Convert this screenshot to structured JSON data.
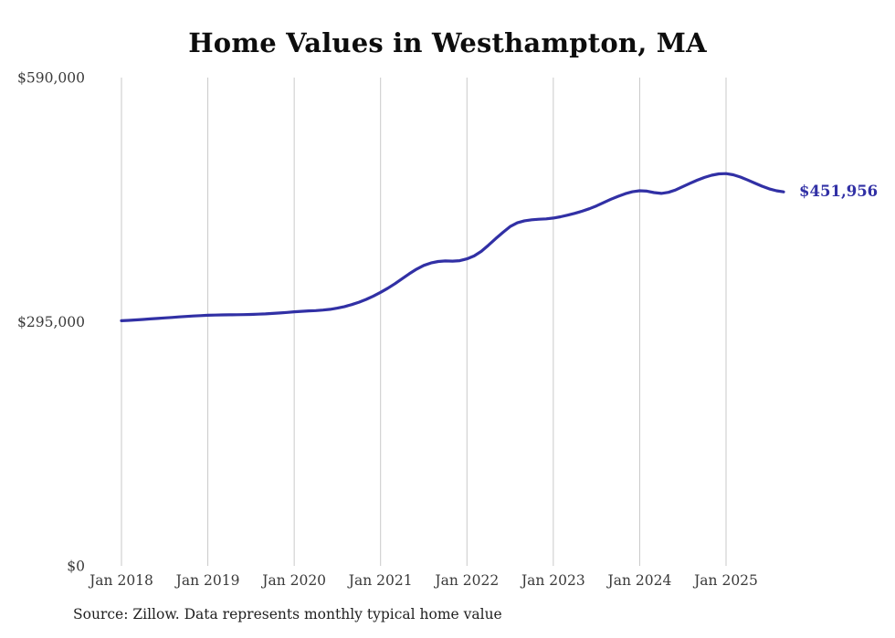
{
  "page": {
    "background": "#ffffff"
  },
  "chart_data": {
    "type": "line",
    "title": "Home Values in Westhampton, MA",
    "source_note": "Source: Zillow. Data represents monthly typical home value",
    "xlabel": "",
    "ylabel": "",
    "ylim": [
      0,
      590000
    ],
    "grid": "vertical-only",
    "legend": "none",
    "line_color": "#3130a5",
    "grid_color": "#c9c9c9",
    "tick_label_color": "#3a3a3a",
    "end_label": "$451,956",
    "end_value": 451956,
    "y_ticks": [
      {
        "value": 590000,
        "label": "$590,000"
      },
      {
        "value": 295000,
        "label": "$295,000"
      },
      {
        "value": 0,
        "label": "$0"
      }
    ],
    "x_tick_labels": [
      "Jan 2018",
      "Jan 2019",
      "Jan 2020",
      "Jan 2021",
      "Jan 2022",
      "Jan 2023",
      "Jan 2024",
      "Jan 2025"
    ],
    "x_ticks_month_index": [
      0,
      12,
      24,
      36,
      48,
      60,
      72,
      84
    ],
    "series": [
      {
        "name": "Monthly typical home value",
        "x": [
          "2018-01",
          "2018-02",
          "2018-03",
          "2018-04",
          "2018-05",
          "2018-06",
          "2018-07",
          "2018-08",
          "2018-09",
          "2018-10",
          "2018-11",
          "2018-12",
          "2019-01",
          "2019-02",
          "2019-03",
          "2019-04",
          "2019-05",
          "2019-06",
          "2019-07",
          "2019-08",
          "2019-09",
          "2019-10",
          "2019-11",
          "2019-12",
          "2020-01",
          "2020-02",
          "2020-03",
          "2020-04",
          "2020-05",
          "2020-06",
          "2020-07",
          "2020-08",
          "2020-09",
          "2020-10",
          "2020-11",
          "2020-12",
          "2021-01",
          "2021-02",
          "2021-03",
          "2021-04",
          "2021-05",
          "2021-06",
          "2021-07",
          "2021-08",
          "2021-09",
          "2021-10",
          "2021-11",
          "2021-12",
          "2022-01",
          "2022-02",
          "2022-03",
          "2022-04",
          "2022-05",
          "2022-06",
          "2022-07",
          "2022-08",
          "2022-09",
          "2022-10",
          "2022-11",
          "2022-12",
          "2023-01",
          "2023-02",
          "2023-03",
          "2023-04",
          "2023-05",
          "2023-06",
          "2023-07",
          "2023-08",
          "2023-09",
          "2023-10",
          "2023-11",
          "2023-12",
          "2024-01",
          "2024-02",
          "2024-03",
          "2024-04",
          "2024-05",
          "2024-06",
          "2024-07",
          "2024-08",
          "2024-09",
          "2024-10",
          "2024-11",
          "2024-12",
          "2025-01",
          "2025-02",
          "2025-03",
          "2025-04",
          "2025-05",
          "2025-06",
          "2025-07",
          "2025-08",
          "2025-09"
        ],
        "values": [
          296200,
          296700,
          297200,
          297800,
          298400,
          299000,
          299600,
          300200,
          300800,
          301400,
          301900,
          302400,
          302800,
          303100,
          303300,
          303400,
          303500,
          303600,
          303800,
          304100,
          304500,
          305000,
          305600,
          306300,
          307000,
          307600,
          308100,
          308500,
          309100,
          310000,
          311400,
          313300,
          315700,
          318600,
          322000,
          326000,
          330500,
          335500,
          341000,
          347000,
          353000,
          358500,
          363000,
          366000,
          367800,
          368400,
          368200,
          368800,
          371000,
          374500,
          380000,
          387500,
          395500,
          403000,
          410000,
          414500,
          417000,
          418200,
          418800,
          419300,
          420300,
          421800,
          423800,
          426000,
          428500,
          431500,
          435000,
          439000,
          443000,
          446500,
          449700,
          452000,
          453300,
          452800,
          451000,
          450100,
          451400,
          454300,
          458300,
          462300,
          466000,
          469400,
          472000,
          473600,
          474000,
          472600,
          469800,
          466300,
          462500,
          458800,
          455600,
          453300,
          451956
        ]
      }
    ]
  }
}
